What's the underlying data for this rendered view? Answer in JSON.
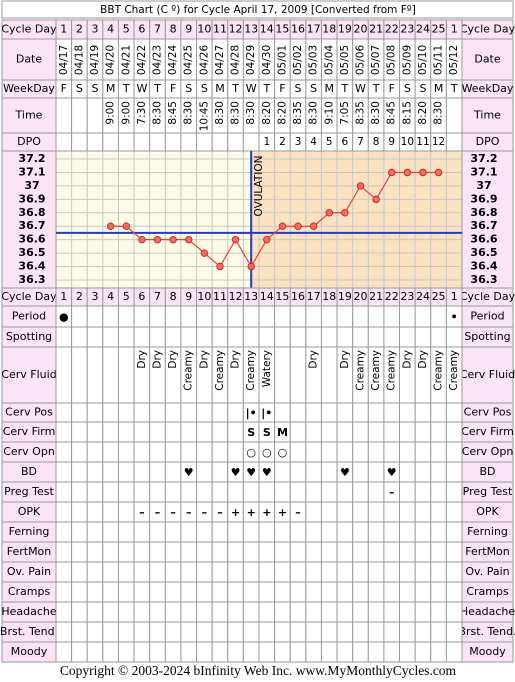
{
  "title": "BBT Chart (C º) for Cycle April 17, 2009  [Converted from Fº]",
  "labels": {
    "cycle_day": "Cycle Day",
    "date": "Date",
    "weekday": "WeekDay",
    "time": "Time",
    "dpo": "DPO"
  },
  "cycle_days": [
    1,
    2,
    3,
    4,
    5,
    6,
    7,
    8,
    9,
    10,
    11,
    12,
    13,
    14,
    15,
    16,
    17,
    18,
    19,
    20,
    21,
    22,
    23,
    24,
    25,
    1
  ],
  "dates": [
    "04/17",
    "04/18",
    "04/19",
    "04/20",
    "04/21",
    "04/22",
    "04/23",
    "04/24",
    "04/25",
    "04/26",
    "04/27",
    "04/28",
    "04/29",
    "04/30",
    "05/01",
    "05/02",
    "05/03",
    "05/04",
    "05/05",
    "05/06",
    "05/07",
    "05/08",
    "05/09",
    "05/10",
    "05/11",
    "05/12"
  ],
  "weekdays": [
    "F",
    "S",
    "S",
    "M",
    "T",
    "W",
    "T",
    "F",
    "S",
    "S",
    "M",
    "T",
    "W",
    "T",
    "F",
    "S",
    "S",
    "M",
    "T",
    "W",
    "T",
    "F",
    "S",
    "S",
    "M",
    "T"
  ],
  "times": [
    null,
    null,
    null,
    "9:00",
    "9:00",
    "7:30",
    "8:30",
    "8:45",
    "8:30",
    "10:45",
    "8:30",
    "8:30",
    "8:30",
    "8:20",
    "8:20",
    "8:35",
    "8:30",
    "9:10",
    "7:05",
    "8:35",
    "8:30",
    "8:45",
    "8:15",
    "8:20",
    "8:30",
    null
  ],
  "dpo": [
    null,
    null,
    null,
    null,
    null,
    null,
    null,
    null,
    null,
    null,
    null,
    null,
    null,
    1,
    2,
    3,
    4,
    5,
    6,
    7,
    8,
    9,
    10,
    11,
    12,
    null
  ],
  "temperature": {
    "ylim": [
      36.24,
      37.26
    ],
    "yticks": [
      37.2,
      37.1,
      37.0,
      36.9,
      36.8,
      36.7,
      36.6,
      36.5,
      36.4,
      36.3
    ],
    "values": [
      null,
      null,
      null,
      36.7,
      36.7,
      36.6,
      36.6,
      36.6,
      36.6,
      36.5,
      36.4,
      36.6,
      36.4,
      36.6,
      36.7,
      36.7,
      36.7,
      36.8,
      36.8,
      37.0,
      36.9,
      37.1,
      37.1,
      37.1,
      37.1,
      null
    ],
    "coverline": 36.65,
    "ovulation_day": 12,
    "ovulation_label": "OVULATION",
    "line_color": "#e8413c",
    "coverline_color": "#1f3fbf"
  },
  "symptoms": [
    {
      "label": "Period",
      "color": "#e020e0",
      "marks": [
        "●",
        null,
        null,
        null,
        null,
        null,
        null,
        null,
        null,
        null,
        null,
        null,
        null,
        null,
        null,
        null,
        null,
        null,
        null,
        null,
        null,
        null,
        null,
        null,
        null,
        "•"
      ]
    },
    {
      "label": "Spotting"
    },
    {
      "label": "Cerv Fluid",
      "vertical": true,
      "color": "#000000",
      "marks": [
        null,
        null,
        null,
        null,
        null,
        "Dry",
        "Dry",
        "Dry",
        "Creamy",
        "Dry",
        "Creamy",
        "Dry",
        "Creamy",
        "Watery",
        null,
        null,
        "Dry",
        null,
        "Dry",
        "Creamy",
        "Creamy",
        "Creamy",
        "Dry",
        "Dry",
        "Creamy",
        "Creamy"
      ]
    },
    {
      "label": "Cerv Pos",
      "color": "#a050c0",
      "marks": [
        null,
        null,
        null,
        null,
        null,
        null,
        null,
        null,
        null,
        null,
        null,
        null,
        "|•",
        "|•",
        null,
        null,
        null,
        null,
        null,
        null,
        null,
        null,
        null,
        null,
        null,
        null
      ]
    },
    {
      "label": "Cerv Firm",
      "color": "#a060b0",
      "marks": [
        null,
        null,
        null,
        null,
        null,
        null,
        null,
        null,
        null,
        null,
        null,
        null,
        "S",
        "S",
        "M",
        null,
        null,
        null,
        null,
        null,
        null,
        null,
        null,
        null,
        null,
        null
      ]
    },
    {
      "label": "Cerv Opn",
      "color": "#b07090",
      "marks": [
        null,
        null,
        null,
        null,
        null,
        null,
        null,
        null,
        null,
        null,
        null,
        null,
        "○",
        "○",
        "○",
        null,
        null,
        null,
        null,
        null,
        null,
        null,
        null,
        null,
        null,
        null
      ]
    },
    {
      "label": "BD",
      "color": "#e0408a",
      "marks": [
        null,
        null,
        null,
        null,
        null,
        null,
        null,
        null,
        "♥",
        null,
        null,
        "♥",
        "♥",
        "♥",
        null,
        null,
        null,
        null,
        "♥",
        null,
        null,
        "♥",
        null,
        null,
        null,
        null
      ]
    },
    {
      "label": "Preg Test",
      "color": "#7030a0",
      "marks": [
        null,
        null,
        null,
        null,
        null,
        null,
        null,
        null,
        null,
        null,
        null,
        null,
        null,
        null,
        null,
        null,
        null,
        null,
        null,
        null,
        null,
        "–",
        null,
        null,
        null,
        null
      ]
    },
    {
      "label": "OPK",
      "color": "#8040c0",
      "marks": [
        null,
        null,
        null,
        null,
        null,
        "–",
        "–",
        "–",
        "–",
        "–",
        "–",
        "+",
        "+",
        "+",
        "+",
        "–",
        null,
        null,
        null,
        null,
        null,
        null,
        null,
        null,
        null,
        null
      ]
    },
    {
      "label": "Ferning"
    },
    {
      "label": "FertMon"
    },
    {
      "label": "Ov. Pain"
    },
    {
      "label": "Cramps"
    },
    {
      "label": "Headache"
    },
    {
      "label": "Brst. Tend."
    },
    {
      "label": "Moody"
    }
  ],
  "copyright": "Copyright © 2003-2024 bInfinity Web Inc.    www.MyMonthlyCycles.com"
}
